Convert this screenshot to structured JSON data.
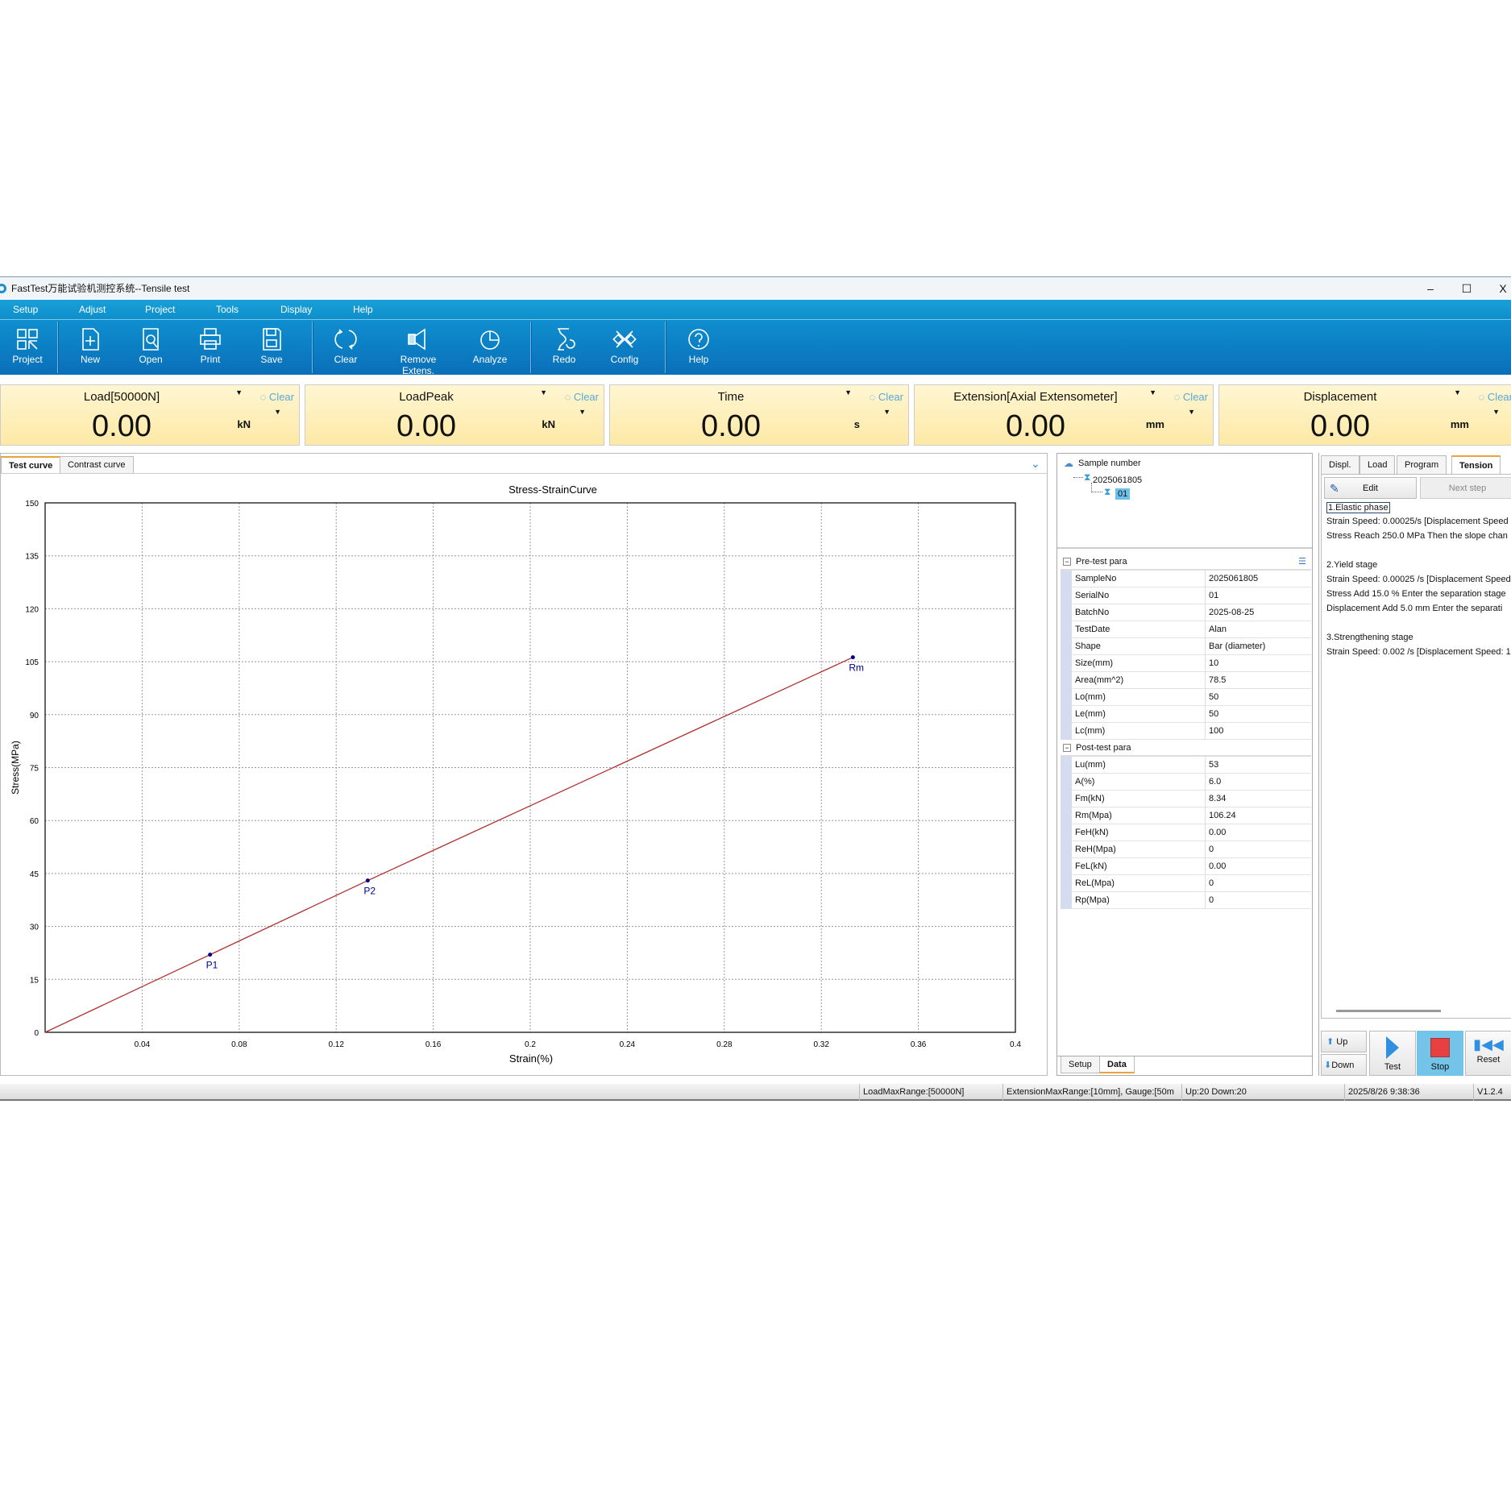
{
  "window": {
    "title": "FastTest万能试验机测控系统--Tensile test",
    "minimize": "–",
    "maximize": "☐",
    "close": "X"
  },
  "menu": [
    "Setup",
    "Adjust",
    "Project",
    "Tools",
    "Display",
    "Help"
  ],
  "toolbar": [
    {
      "label": "Project",
      "icon": "grid-icon"
    },
    {
      "label": "New",
      "icon": "new-file-icon"
    },
    {
      "label": "Open",
      "icon": "open-search-icon"
    },
    {
      "label": "Print",
      "icon": "printer-icon"
    },
    {
      "label": "Save",
      "icon": "floppy-icon"
    },
    {
      "label": "Clear",
      "icon": "refresh-icon"
    },
    {
      "label": "Remove Extens.",
      "icon": "extensometer-icon"
    },
    {
      "label": "Analyze",
      "icon": "pie-chart-icon"
    },
    {
      "label": "Redo",
      "icon": "redo-hourglass-icon"
    },
    {
      "label": "Config",
      "icon": "tools-icon"
    },
    {
      "label": "Help",
      "icon": "help-icon"
    }
  ],
  "readouts": [
    {
      "label": "Load[50000N]",
      "value": "0.00",
      "unit": "kN",
      "clear": "Clear"
    },
    {
      "label": "LoadPeak",
      "value": "0.00",
      "unit": "kN",
      "clear": "Clear"
    },
    {
      "label": "Time",
      "value": "0.00",
      "unit": "s",
      "clear": "Clear"
    },
    {
      "label": "Extension[Axial Extensometer]",
      "value": "0.00",
      "unit": "mm",
      "clear": "Clear"
    },
    {
      "label": "Displacement",
      "value": "0.00",
      "unit": "mm",
      "clear": "Clear"
    }
  ],
  "chart_tabs": [
    "Test curve",
    "Contrast curve"
  ],
  "chart_data": {
    "type": "line",
    "title": "Stress-StrainCurve",
    "xlabel": "Strain(%)",
    "ylabel": "Stress(MPa)",
    "xlim": [
      0,
      0.4
    ],
    "ylim": [
      0,
      150
    ],
    "grid": true,
    "xticks": [
      "0.04",
      "0.08",
      "0.12",
      "0.16",
      "0.2",
      "0.24",
      "0.28",
      "0.32",
      "0.36",
      "0.4"
    ],
    "yticks": [
      "0",
      "15",
      "30",
      "45",
      "60",
      "75",
      "90",
      "105",
      "120",
      "135",
      "150"
    ],
    "series": [
      {
        "x": [
          0,
          0.068,
          0.133,
          0.333
        ],
        "y": [
          0,
          22,
          43,
          106.24
        ],
        "color": "#b03030"
      }
    ],
    "markers": [
      {
        "label": "P1",
        "x": 0.068,
        "y": 22
      },
      {
        "label": "P2",
        "x": 0.133,
        "y": 43
      },
      {
        "label": "Rm",
        "x": 0.333,
        "y": 106.24
      }
    ]
  },
  "tree": {
    "root": "Sample number",
    "sample": "2025061805",
    "serial": "01"
  },
  "pretest": {
    "title": "Pre-test para",
    "rows": [
      [
        "SampleNo",
        "2025061805"
      ],
      [
        "SerialNo",
        "01"
      ],
      [
        "BatchNo",
        "2025-08-25"
      ],
      [
        "TestDate",
        "Alan"
      ],
      [
        "Shape",
        "Bar (diameter)"
      ],
      [
        "Size(mm)",
        "10"
      ],
      [
        "Area(mm^2)",
        "78.5"
      ],
      [
        "Lo(mm)",
        "50"
      ],
      [
        "Le(mm)",
        "50"
      ],
      [
        "Lc(mm)",
        "100"
      ]
    ]
  },
  "posttest": {
    "title": "Post-test para",
    "rows": [
      [
        "Lu(mm)",
        "53"
      ],
      [
        "A(%)",
        "6.0"
      ],
      [
        "Fm(kN)",
        "8.34"
      ],
      [
        "Rm(Mpa)",
        "106.24"
      ],
      [
        "FeH(kN)",
        "0.00"
      ],
      [
        "ReH(Mpa)",
        "0"
      ],
      [
        "FeL(kN)",
        "0.00"
      ],
      [
        "ReL(Mpa)",
        "0"
      ],
      [
        "Rp(Mpa)",
        "0"
      ]
    ]
  },
  "data_tabs": [
    "Setup",
    "Data"
  ],
  "right_tabs": [
    "Displ.",
    "Load",
    "Program",
    "Tension"
  ],
  "program": {
    "edit": "Edit",
    "next": "Next step",
    "lines": [
      "1.Elastic phase",
      "Strain Speed: 0.00025/s [Displacement Speed",
      "Stress Reach 250.0 MPa Then the slope chan",
      "",
      "2.Yield stage",
      "Strain Speed: 0.00025 /s [Displacement Speed",
      "Stress Add 15.0 % Enter the separation stage",
      "Displacement Add 5.0 mm Enter the separati",
      "",
      "3.Strengthening stage",
      "Strain Speed: 0.002 /s [Displacement Speed: 1"
    ]
  },
  "controls": {
    "up": "Up",
    "down": "Down",
    "test": "Test",
    "stop": "Stop",
    "reset": "Reset"
  },
  "status": {
    "load": "LoadMaxRange:[50000N]",
    "ext": "ExtensionMaxRange:[10mm], Gauge:[50m",
    "updown": "Up:20 Down:20",
    "datetime": "2025/8/26 9:38:36",
    "version": "V1.2.4"
  },
  "colors": {
    "accent": "#0d8fcb",
    "readout": "#fdeeb5",
    "stop": "#e84040",
    "active_button": "#74c4ea"
  }
}
